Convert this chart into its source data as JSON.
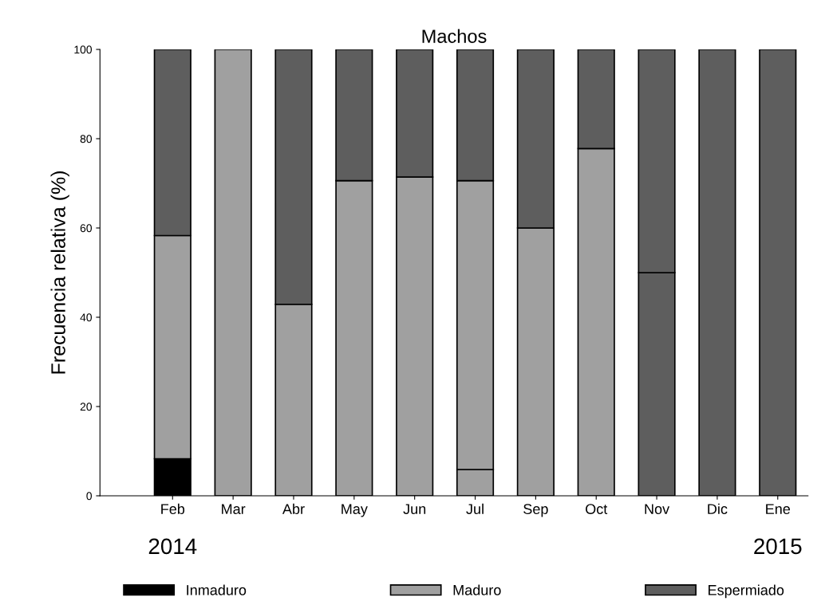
{
  "chart_data": {
    "type": "bar",
    "title": "Machos",
    "ylabel": "Frecuencia relativa (%)",
    "stacked": true,
    "categories": [
      "Feb",
      "Mar",
      "Abr",
      "May",
      "Jun",
      "Jul",
      "Sep",
      "Oct",
      "Nov",
      "Dic",
      "Ene"
    ],
    "series": [
      {
        "name": "Inmaduro",
        "color": "#000000",
        "values": [
          8.3,
          null,
          null,
          null,
          null,
          null,
          null,
          null,
          null,
          null,
          null
        ]
      },
      {
        "color": "#a0a0a0",
        "values": [
          null,
          null,
          null,
          null,
          null,
          5.9,
          null,
          null,
          null,
          null,
          null
        ]
      },
      {
        "name": "Maduro",
        "color": "#a0a0a0",
        "values": [
          50,
          100,
          42.9,
          70.6,
          71.4,
          64.7,
          60,
          77.8,
          null,
          null,
          null
        ]
      },
      {
        "color": "#5e5e5e",
        "values": [
          null,
          null,
          null,
          null,
          null,
          null,
          null,
          null,
          50,
          null,
          null
        ]
      },
      {
        "name": "Espermiado",
        "color": "#5e5e5e",
        "values": [
          41.7,
          null,
          57.1,
          29.4,
          28.6,
          29.4,
          40,
          22.2,
          50,
          100,
          100
        ]
      }
    ],
    "ylim": [
      0,
      100
    ],
    "yticks": [
      0,
      20,
      40,
      60,
      80,
      100
    ],
    "grid": false,
    "legend": "bottom",
    "annotations": [
      "2014",
      "2015"
    ]
  }
}
